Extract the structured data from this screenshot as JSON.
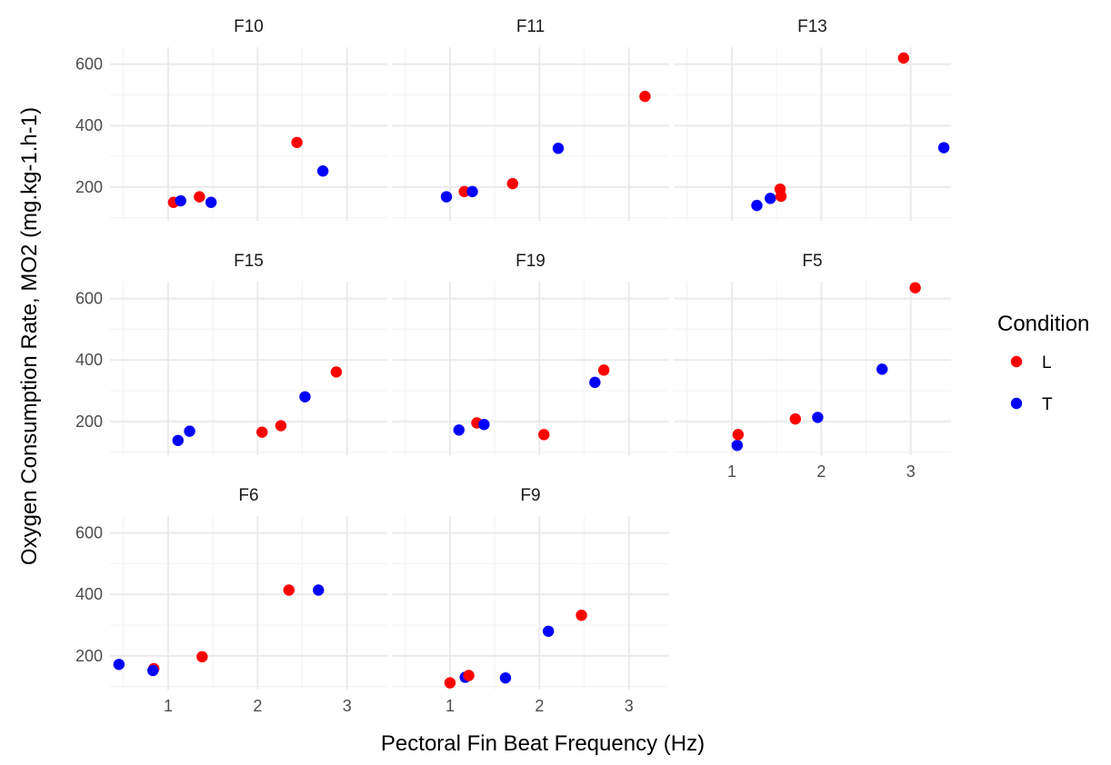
{
  "chart_data": {
    "type": "scatter",
    "facets": [
      {
        "title": "F10",
        "points": [
          {
            "condition": "L",
            "x": 1.06,
            "y": 150
          },
          {
            "condition": "T",
            "x": 1.14,
            "y": 155
          },
          {
            "condition": "L",
            "x": 1.35,
            "y": 168
          },
          {
            "condition": "T",
            "x": 1.48,
            "y": 150
          },
          {
            "condition": "L",
            "x": 2.44,
            "y": 345
          },
          {
            "condition": "T",
            "x": 2.73,
            "y": 252
          }
        ]
      },
      {
        "title": "F11",
        "points": [
          {
            "condition": "T",
            "x": 0.96,
            "y": 168
          },
          {
            "condition": "L",
            "x": 1.16,
            "y": 185
          },
          {
            "condition": "T",
            "x": 1.25,
            "y": 185
          },
          {
            "condition": "L",
            "x": 1.7,
            "y": 211
          },
          {
            "condition": "T",
            "x": 2.21,
            "y": 326
          },
          {
            "condition": "L",
            "x": 3.18,
            "y": 495
          }
        ]
      },
      {
        "title": "F13",
        "points": [
          {
            "condition": "T",
            "x": 1.28,
            "y": 140
          },
          {
            "condition": "T",
            "x": 1.43,
            "y": 163
          },
          {
            "condition": "L",
            "x": 1.54,
            "y": 193
          },
          {
            "condition": "L",
            "x": 1.55,
            "y": 170
          },
          {
            "condition": "L",
            "x": 2.92,
            "y": 620
          },
          {
            "condition": "T",
            "x": 3.37,
            "y": 328
          }
        ]
      },
      {
        "title": "F15",
        "points": [
          {
            "condition": "T",
            "x": 1.11,
            "y": 138
          },
          {
            "condition": "T",
            "x": 1.24,
            "y": 168
          },
          {
            "condition": "L",
            "x": 2.05,
            "y": 165
          },
          {
            "condition": "L",
            "x": 2.26,
            "y": 186
          },
          {
            "condition": "T",
            "x": 2.53,
            "y": 280
          },
          {
            "condition": "L",
            "x": 2.88,
            "y": 361
          }
        ]
      },
      {
        "title": "F19",
        "points": [
          {
            "condition": "T",
            "x": 1.1,
            "y": 172
          },
          {
            "condition": "L",
            "x": 1.3,
            "y": 195
          },
          {
            "condition": "T",
            "x": 1.38,
            "y": 190
          },
          {
            "condition": "L",
            "x": 2.05,
            "y": 157
          },
          {
            "condition": "T",
            "x": 2.62,
            "y": 327
          },
          {
            "condition": "L",
            "x": 2.72,
            "y": 367
          }
        ]
      },
      {
        "title": "F5",
        "points": [
          {
            "condition": "T",
            "x": 1.06,
            "y": 122
          },
          {
            "condition": "L",
            "x": 1.07,
            "y": 157
          },
          {
            "condition": "L",
            "x": 1.71,
            "y": 208
          },
          {
            "condition": "T",
            "x": 1.96,
            "y": 213
          },
          {
            "condition": "T",
            "x": 2.68,
            "y": 370
          },
          {
            "condition": "L",
            "x": 3.05,
            "y": 635
          }
        ]
      },
      {
        "title": "F6",
        "points": [
          {
            "condition": "T",
            "x": 0.45,
            "y": 172
          },
          {
            "condition": "L",
            "x": 0.84,
            "y": 158
          },
          {
            "condition": "T",
            "x": 0.83,
            "y": 152
          },
          {
            "condition": "L",
            "x": 1.38,
            "y": 197
          },
          {
            "condition": "L",
            "x": 2.35,
            "y": 414
          },
          {
            "condition": "T",
            "x": 2.68,
            "y": 414
          }
        ]
      },
      {
        "title": "F9",
        "points": [
          {
            "condition": "L",
            "x": 1.0,
            "y": 112
          },
          {
            "condition": "T",
            "x": 1.17,
            "y": 130
          },
          {
            "condition": "L",
            "x": 1.21,
            "y": 136
          },
          {
            "condition": "T",
            "x": 1.62,
            "y": 128
          },
          {
            "condition": "T",
            "x": 2.1,
            "y": 280
          },
          {
            "condition": "L",
            "x": 2.47,
            "y": 332
          }
        ]
      }
    ],
    "xlabel": "Pectoral Fin Beat Frequency (Hz)",
    "ylabel": "Oxygen Consumption Rate, MO2 (mg.kg-1.h-1)",
    "xticks": [
      1,
      2,
      3
    ],
    "yticks": [
      200,
      400,
      600
    ],
    "xlim": [
      0.35,
      3.45
    ],
    "ylim": [
      90,
      655
    ],
    "grid": true,
    "legend": {
      "title": "Condition",
      "placement": "right",
      "entries": [
        {
          "label": "L",
          "color": "#ff0000"
        },
        {
          "label": "T",
          "color": "#0000ff"
        }
      ]
    }
  }
}
